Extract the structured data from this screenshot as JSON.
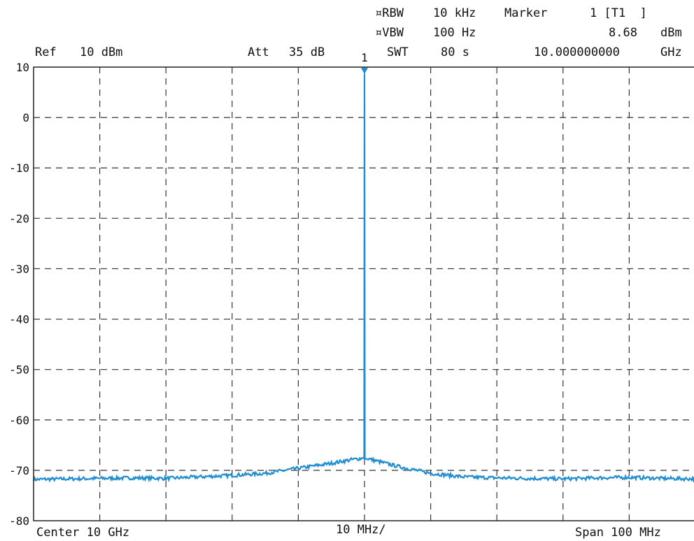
{
  "header": {
    "ref_label": "Ref",
    "ref_value": "10 dBm",
    "att_label": "Att",
    "att_value": "35 dB",
    "rbw_label": "¤RBW",
    "rbw_value": "10 kHz",
    "vbw_label": "¤VBW",
    "vbw_value": "100 Hz",
    "swt_label": "SWT",
    "swt_value": "80 s",
    "marker_label": "Marker",
    "marker_id": "1 [T1  ]",
    "marker_level": "8.68",
    "marker_level_unit": "dBm",
    "marker_freq": "10.000000000",
    "marker_freq_unit": "GHz"
  },
  "footer": {
    "center": "Center 10 GHz",
    "div": "10 MHz/",
    "span": "Span 100 MHz"
  },
  "chart_data": {
    "type": "line",
    "x_unit": "MHz offset from center",
    "xlim": [
      -50,
      50
    ],
    "ylim": [
      -80,
      10
    ],
    "yticks": [
      10,
      0,
      -10,
      -20,
      -30,
      -40,
      -50,
      -60,
      -70,
      -80
    ],
    "grid": true,
    "colors": {
      "trace": "#1f8dd1",
      "grid": "#333333"
    },
    "marker": {
      "label": "1",
      "x": 0,
      "y": 8.68
    },
    "series": [
      {
        "x": [
          -50,
          -45,
          -40,
          -35,
          -30,
          -25,
          -20,
          -15,
          -10,
          -5,
          -2,
          -0.3,
          0,
          0.3,
          2,
          5,
          10,
          15,
          20,
          25,
          30,
          35,
          40,
          45,
          50
        ],
        "values": [
          -71.8,
          -71.7,
          -71.6,
          -71.5,
          -71.6,
          -71.3,
          -71.0,
          -70.6,
          -69.6,
          -68.6,
          -67.9,
          -67.6,
          8.68,
          -67.6,
          -68.2,
          -69.2,
          -70.6,
          -71.3,
          -71.5,
          -71.6,
          -71.7,
          -71.5,
          -71.4,
          -71.6,
          -71.7
        ]
      }
    ]
  }
}
